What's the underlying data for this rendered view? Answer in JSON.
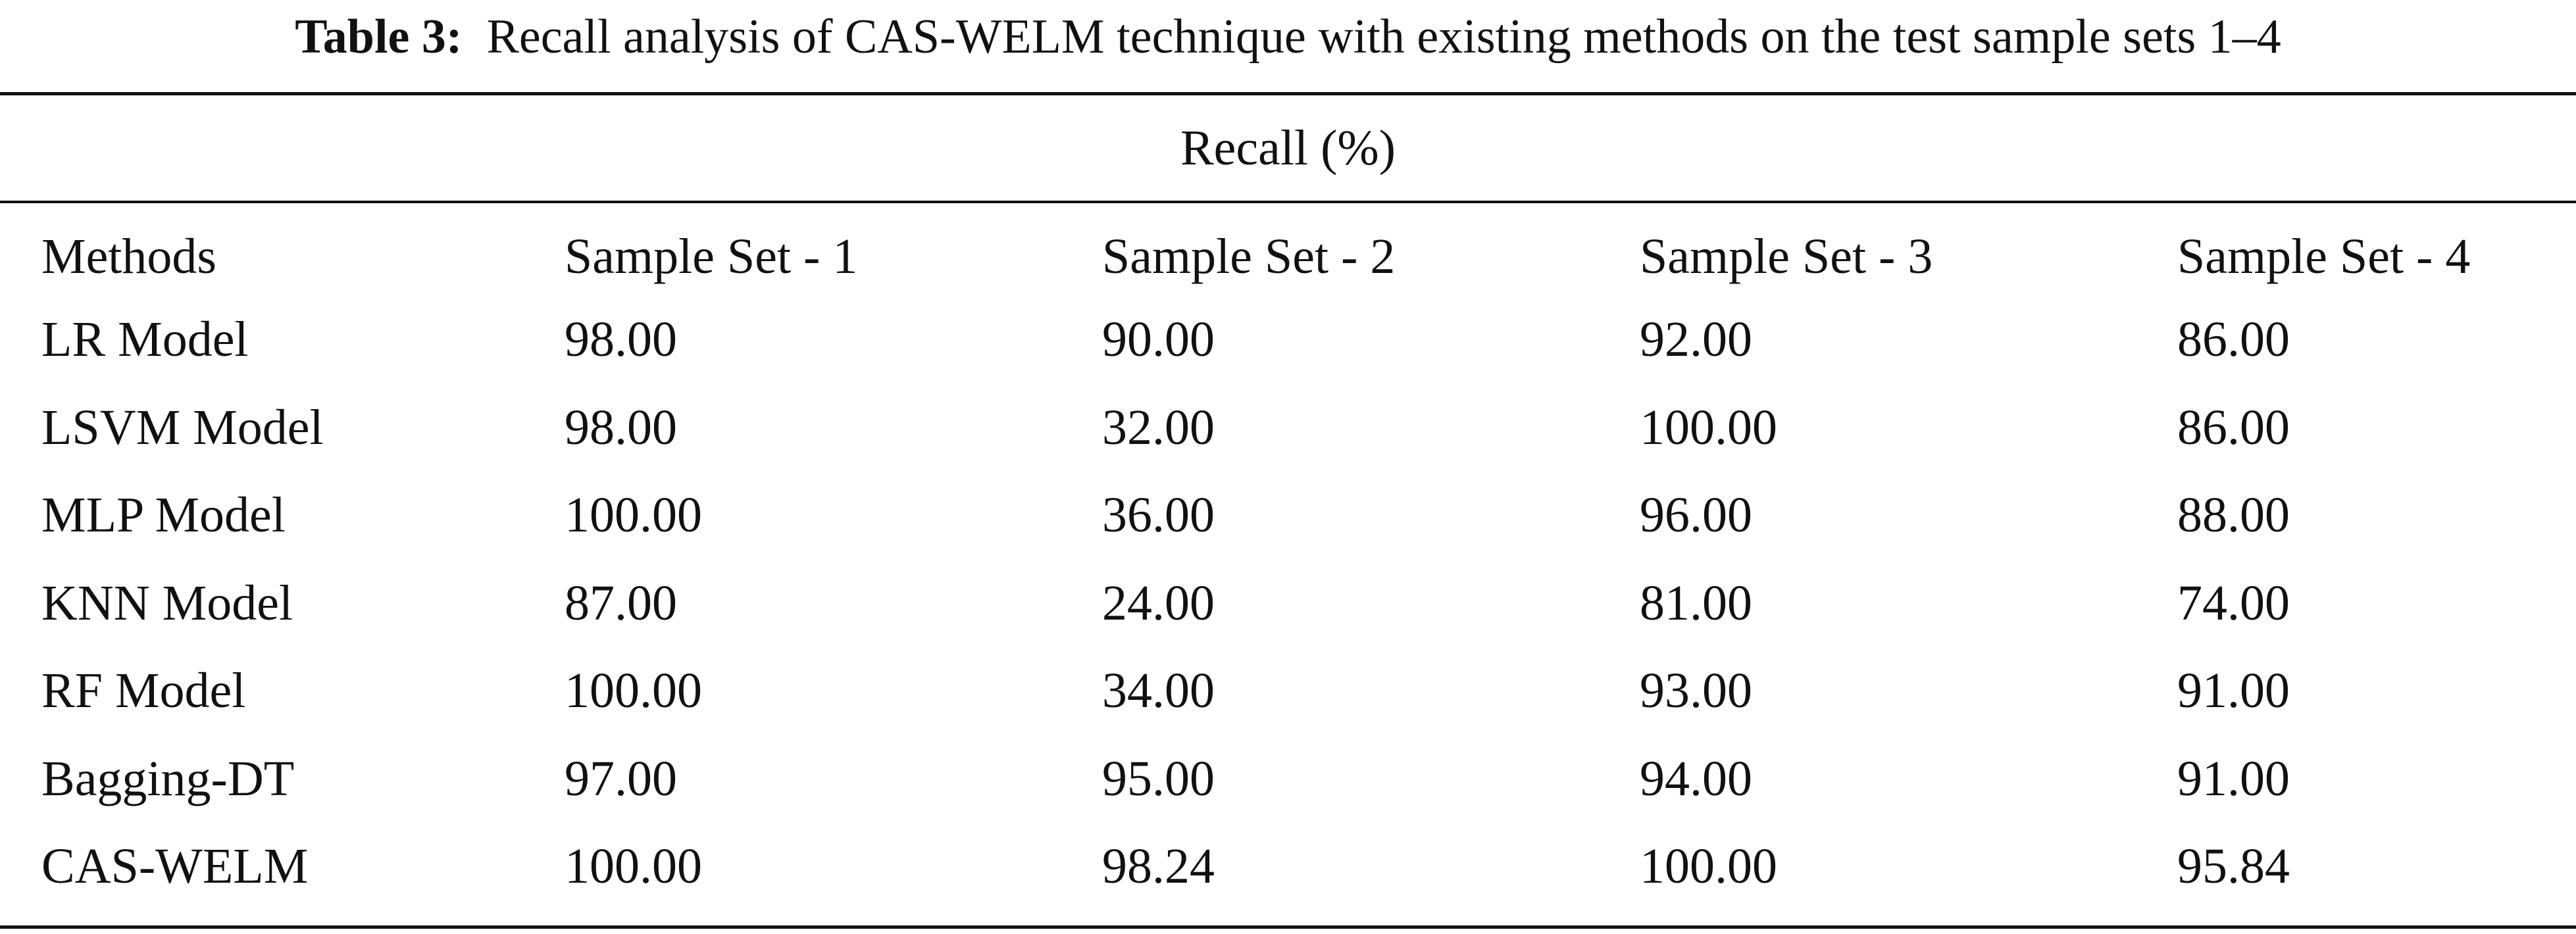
{
  "caption": {
    "label": "Table 3:",
    "text": "Recall analysis of CAS-WELM technique with existing methods on the test sample sets 1–4"
  },
  "table": {
    "group_header": "Recall (%)",
    "columns": [
      "Methods",
      "Sample Set - 1",
      "Sample Set - 2",
      "Sample Set - 3",
      "Sample Set - 4"
    ],
    "rows": [
      [
        "LR Model",
        "98.00",
        "90.00",
        "92.00",
        "86.00"
      ],
      [
        "LSVM Model",
        "98.00",
        "32.00",
        "100.00",
        "86.00"
      ],
      [
        "MLP Model",
        "100.00",
        "36.00",
        "96.00",
        "88.00"
      ],
      [
        "KNN Model",
        "87.00",
        "24.00",
        "81.00",
        "74.00"
      ],
      [
        "RF Model",
        "100.00",
        "34.00",
        "93.00",
        "91.00"
      ],
      [
        "Bagging-DT",
        "97.00",
        "95.00",
        "94.00",
        "91.00"
      ],
      [
        "CAS-WELM",
        "100.00",
        "98.24",
        "100.00",
        "95.84"
      ]
    ]
  }
}
